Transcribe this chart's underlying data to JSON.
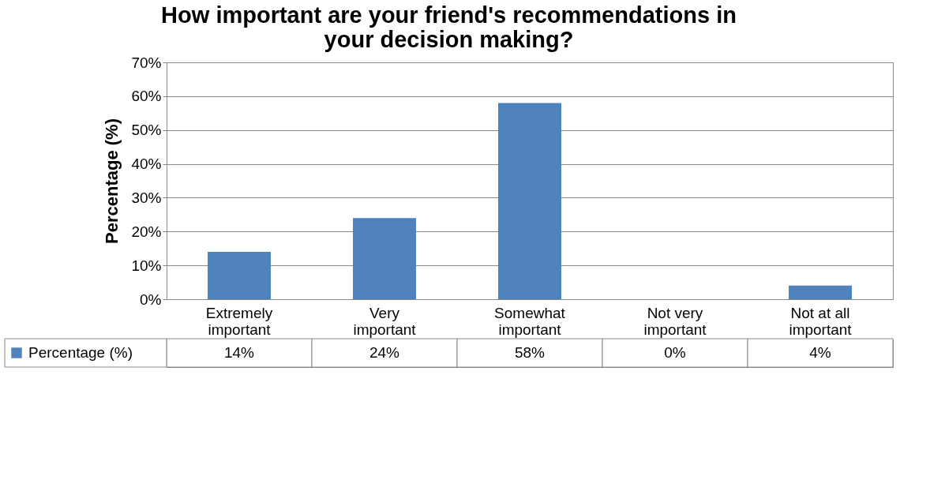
{
  "chart_data": {
    "type": "bar",
    "title": "How important are your friend's recommendations in your decision making?",
    "ylabel": "Percentage (%)",
    "categories": [
      "Extremely important",
      "Very important",
      "Somewhat important",
      "Not very important",
      "Not at all important"
    ],
    "series": [
      {
        "name": "Percentage (%)",
        "color": "#4f81bd",
        "values": [
          14,
          24,
          58,
          0,
          4
        ],
        "value_labels": [
          "14%",
          "24%",
          "58%",
          "0%",
          "4%"
        ]
      }
    ],
    "ylim": [
      0,
      70
    ],
    "yticks": [
      {
        "value": 0,
        "label": "0%"
      },
      {
        "value": 10,
        "label": "10%"
      },
      {
        "value": 20,
        "label": "20%"
      },
      {
        "value": 30,
        "label": "30%"
      },
      {
        "value": 40,
        "label": "40%"
      },
      {
        "value": 50,
        "label": "50%"
      },
      {
        "value": 60,
        "label": "60%"
      },
      {
        "value": 70,
        "label": "70%"
      }
    ],
    "grid": "y",
    "legend": "bottom"
  }
}
